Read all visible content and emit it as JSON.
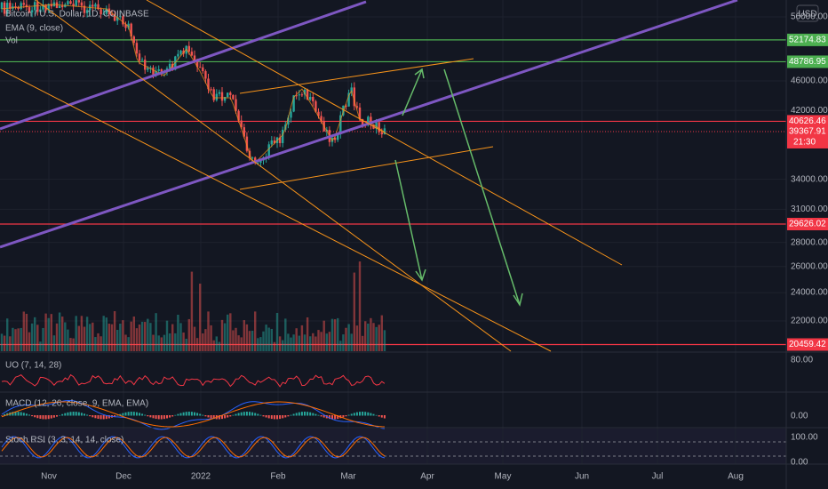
{
  "header": {
    "symbol": "Bitcoin / U.S. Dollar, 1D, COINBASE",
    "indicators": [
      "EMA (9, close)",
      "Vol"
    ]
  },
  "currency": "USD",
  "price_axis": {
    "ticks": [
      "56000.00",
      "46000.00",
      "42000.00",
      "34000.00",
      "31000.00",
      "28000.00",
      "26000.00",
      "24000.00",
      "22000.00"
    ],
    "tags": [
      {
        "label": "52174.83",
        "color": "#4caf50"
      },
      {
        "label": "48786.95",
        "color": "#4caf50"
      },
      {
        "label": "40626.46",
        "color": "#f23645"
      },
      {
        "label": "39367.91",
        "color": "#f23645"
      },
      {
        "label": "29626.02",
        "color": "#f23645"
      },
      {
        "label": "20459.42",
        "color": "#f23645"
      }
    ],
    "countdown": "21:30"
  },
  "panes": [
    {
      "label": "UO (7, 14, 28)",
      "ticks": [
        "80.00"
      ]
    },
    {
      "label": "MACD (12, 26, close, 9, EMA, EMA)",
      "ticks": [
        "0.00"
      ]
    },
    {
      "label": "Stoch RSI (3, 3, 14, 14, close)",
      "ticks": [
        "100.00",
        "0.00"
      ]
    }
  ],
  "time_axis": [
    "Nov",
    "Dec",
    "2022",
    "Feb",
    "Mar",
    "Apr",
    "May",
    "Jun",
    "Jul",
    "Aug"
  ]
}
